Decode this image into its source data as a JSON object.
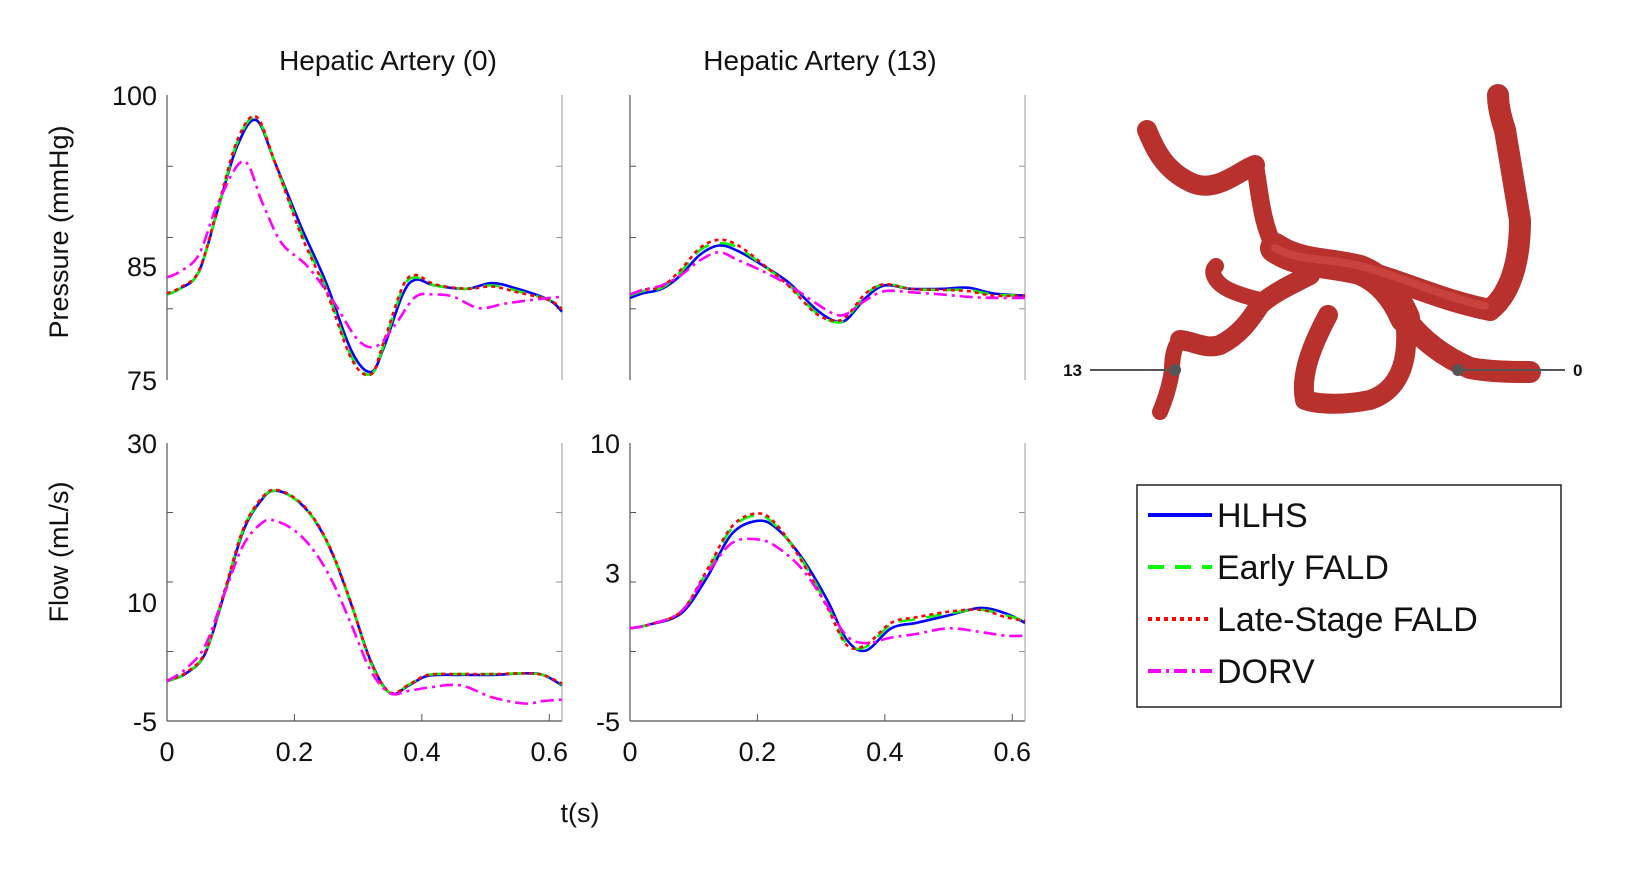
{
  "figure": {
    "shared_xlabel": "t(s)"
  },
  "chart_data": [
    {
      "type": "line",
      "title": "Hepatic Artery (0)",
      "xlabel": "",
      "ylabel": "Pressure (mmHg)",
      "xlim": [
        0,
        0.62
      ],
      "ylim": [
        75,
        100
      ],
      "x_ticks": [],
      "y_ticks": [
        "100",
        "85",
        "75"
      ],
      "y_tick_values": [
        100,
        85,
        75
      ],
      "series": [
        {
          "name": "HLHS",
          "x": [
            0,
            0.02,
            0.05,
            0.08,
            0.11,
            0.14,
            0.17,
            0.21,
            0.25,
            0.29,
            0.32,
            0.34,
            0.37,
            0.39,
            0.42,
            0.47,
            0.51,
            0.55,
            0.6,
            0.62
          ],
          "y": [
            82.5,
            83,
            84.5,
            90,
            95.5,
            97.8,
            94,
            88.5,
            83.5,
            77.5,
            75.7,
            77.8,
            82.5,
            83.8,
            83.3,
            83,
            83.5,
            83,
            82,
            81
          ]
        },
        {
          "name": "Early FALD",
          "x": [
            0,
            0.02,
            0.05,
            0.08,
            0.11,
            0.14,
            0.17,
            0.21,
            0.25,
            0.29,
            0.32,
            0.34,
            0.37,
            0.39,
            0.42,
            0.47,
            0.51,
            0.55,
            0.6,
            0.62
          ],
          "y": [
            82.5,
            83,
            84.5,
            90,
            95.8,
            98,
            94,
            88,
            83,
            77,
            75.5,
            78,
            83,
            84,
            83.3,
            83,
            83.3,
            82.8,
            82,
            81.3
          ]
        },
        {
          "name": "Late-Stage FALD",
          "x": [
            0,
            0.02,
            0.05,
            0.08,
            0.11,
            0.14,
            0.17,
            0.21,
            0.25,
            0.29,
            0.32,
            0.34,
            0.37,
            0.39,
            0.42,
            0.47,
            0.51,
            0.55,
            0.6,
            0.62
          ],
          "y": [
            82.6,
            83.1,
            84.6,
            90.2,
            96,
            98.1,
            94,
            87.8,
            82.8,
            76.8,
            75.5,
            78.3,
            83.2,
            84.2,
            83.4,
            83,
            83.2,
            82.7,
            82,
            81.2
          ]
        },
        {
          "name": "DORV",
          "x": [
            0,
            0.02,
            0.05,
            0.08,
            0.12,
            0.15,
            0.18,
            0.22,
            0.26,
            0.3,
            0.33,
            0.36,
            0.39,
            0.42,
            0.45,
            0.49,
            0.53,
            0.57,
            0.6,
            0.62
          ],
          "y": [
            84,
            84.5,
            86,
            90.5,
            94.2,
            90.5,
            87,
            85,
            82,
            78.5,
            78,
            80,
            82.3,
            82.5,
            82.3,
            81.3,
            81.7,
            82,
            82.2,
            82.3
          ]
        }
      ]
    },
    {
      "type": "line",
      "title": "Hepatic Artery (13)",
      "xlabel": "",
      "ylabel": "",
      "xlim": [
        0,
        0.62
      ],
      "ylim": [
        75,
        100
      ],
      "x_ticks": [],
      "y_ticks": [],
      "series": [
        {
          "name": "HLHS",
          "x": [
            0,
            0.02,
            0.05,
            0.08,
            0.11,
            0.14,
            0.17,
            0.21,
            0.25,
            0.29,
            0.32,
            0.34,
            0.37,
            0.4,
            0.44,
            0.49,
            0.53,
            0.57,
            0.62
          ],
          "y": [
            82.2,
            82.6,
            83,
            84.2,
            86,
            86.8,
            86.3,
            85,
            83.5,
            81.3,
            80.2,
            80.3,
            82.2,
            83.3,
            83,
            83,
            83.1,
            82.6,
            82.4
          ]
        },
        {
          "name": "Early FALD",
          "x": [
            0,
            0.02,
            0.05,
            0.08,
            0.11,
            0.14,
            0.17,
            0.21,
            0.25,
            0.29,
            0.32,
            0.34,
            0.37,
            0.4,
            0.44,
            0.49,
            0.53,
            0.57,
            0.62
          ],
          "y": [
            82.4,
            82.8,
            83.1,
            84.5,
            86.4,
            87,
            86.6,
            85,
            83.3,
            81,
            80.1,
            80.4,
            82.5,
            83.4,
            83,
            82.9,
            82.9,
            82.5,
            82.4
          ]
        },
        {
          "name": "Late-Stage FALD",
          "x": [
            0,
            0.02,
            0.05,
            0.08,
            0.11,
            0.14,
            0.17,
            0.21,
            0.25,
            0.29,
            0.32,
            0.34,
            0.37,
            0.4,
            0.44,
            0.49,
            0.53,
            0.57,
            0.62
          ],
          "y": [
            82.5,
            82.9,
            83.2,
            84.7,
            86.6,
            87.3,
            86.8,
            85.1,
            83.2,
            80.9,
            80.2,
            80.6,
            82.6,
            83.4,
            83,
            82.9,
            82.8,
            82.4,
            82.4
          ]
        },
        {
          "name": "DORV",
          "x": [
            0,
            0.02,
            0.05,
            0.08,
            0.11,
            0.14,
            0.17,
            0.21,
            0.25,
            0.29,
            0.32,
            0.34,
            0.37,
            0.4,
            0.44,
            0.49,
            0.53,
            0.57,
            0.62
          ],
          "y": [
            82.5,
            82.9,
            83.3,
            84.2,
            85.5,
            86.2,
            85.5,
            84.5,
            83.3,
            81.8,
            80.8,
            80.8,
            82,
            82.8,
            82.7,
            82.5,
            82.3,
            82.2,
            82.2
          ]
        }
      ]
    },
    {
      "type": "line",
      "title": "",
      "xlabel": "",
      "ylabel": "Flow (mL/s)",
      "xlim": [
        0,
        0.62
      ],
      "ylim": [
        -5,
        30
      ],
      "x_ticks": [
        "0",
        "0.2",
        "0.4",
        "0.6"
      ],
      "x_tick_values": [
        0,
        0.2,
        0.4,
        0.6
      ],
      "y_ticks": [
        "30",
        "10",
        "-5"
      ],
      "y_tick_values": [
        30,
        10,
        -5
      ],
      "series": [
        {
          "name": "HLHS",
          "x": [
            0,
            0.03,
            0.06,
            0.09,
            0.12,
            0.15,
            0.17,
            0.2,
            0.23,
            0.26,
            0.29,
            0.32,
            0.35,
            0.38,
            0.41,
            0.46,
            0.51,
            0.56,
            0.59,
            0.62
          ],
          "y": [
            0,
            1,
            3.5,
            11,
            19,
            23,
            24,
            23,
            20.5,
            16,
            9.5,
            2.5,
            -1.5,
            -0.5,
            0.7,
            0.8,
            0.8,
            1,
            0.8,
            -0.5
          ]
        },
        {
          "name": "Early FALD",
          "x": [
            0,
            0.03,
            0.06,
            0.09,
            0.12,
            0.15,
            0.17,
            0.2,
            0.23,
            0.26,
            0.29,
            0.32,
            0.35,
            0.38,
            0.41,
            0.46,
            0.51,
            0.56,
            0.59,
            0.62
          ],
          "y": [
            0,
            1,
            3.6,
            11.2,
            19.2,
            23.1,
            24,
            23,
            20.5,
            16,
            9.5,
            2.3,
            -1.5,
            -0.4,
            0.8,
            0.9,
            0.9,
            1,
            0.8,
            -0.4
          ]
        },
        {
          "name": "Late-Stage FALD",
          "x": [
            0,
            0.03,
            0.06,
            0.09,
            0.12,
            0.15,
            0.17,
            0.2,
            0.23,
            0.26,
            0.29,
            0.32,
            0.35,
            0.38,
            0.41,
            0.46,
            0.51,
            0.56,
            0.59,
            0.62
          ],
          "y": [
            0.1,
            1.1,
            3.7,
            11.3,
            19.3,
            23.2,
            24.1,
            23.1,
            20.6,
            16.1,
            9.6,
            2.4,
            -1.4,
            -0.4,
            0.8,
            0.9,
            0.9,
            1,
            0.8,
            -0.3
          ]
        },
        {
          "name": "DORV",
          "x": [
            0,
            0.03,
            0.06,
            0.09,
            0.12,
            0.15,
            0.17,
            0.2,
            0.23,
            0.26,
            0.29,
            0.32,
            0.35,
            0.38,
            0.41,
            0.46,
            0.51,
            0.56,
            0.59,
            0.62
          ],
          "y": [
            0,
            1.6,
            4.5,
            11,
            17.2,
            20,
            20.2,
            19,
            16.5,
            12.5,
            7,
            1.3,
            -1.5,
            -1.2,
            -0.8,
            -0.5,
            -2,
            -2.8,
            -2.5,
            -2.3
          ]
        }
      ]
    },
    {
      "type": "line",
      "title": "",
      "xlabel": "",
      "ylabel": "",
      "xlim": [
        0,
        0.62
      ],
      "ylim": [
        -5,
        10
      ],
      "x_ticks": [
        "0",
        "0.2",
        "0.4",
        "0.6"
      ],
      "x_tick_values": [
        0,
        0.2,
        0.4,
        0.6
      ],
      "y_ticks": [
        "10",
        "3",
        "-5"
      ],
      "y_tick_values": [
        10,
        3,
        -5
      ],
      "series": [
        {
          "name": "HLHS",
          "x": [
            0,
            0.03,
            0.08,
            0.12,
            0.16,
            0.2,
            0.23,
            0.27,
            0.31,
            0.34,
            0.37,
            0.41,
            0.45,
            0.5,
            0.55,
            0.59,
            0.62
          ],
          "y": [
            0,
            0.2,
            0.8,
            2.7,
            5.1,
            5.8,
            5.4,
            3.8,
            1.5,
            -0.6,
            -1.2,
            0,
            0.3,
            0.7,
            1.1,
            0.8,
            0.3
          ]
        },
        {
          "name": "Early FALD",
          "x": [
            0,
            0.03,
            0.08,
            0.12,
            0.16,
            0.2,
            0.23,
            0.27,
            0.31,
            0.34,
            0.37,
            0.41,
            0.45,
            0.5,
            0.55,
            0.59,
            0.62
          ],
          "y": [
            0,
            0.2,
            0.9,
            3,
            5.4,
            6.1,
            5.5,
            3.7,
            1.2,
            -0.8,
            -1,
            0.2,
            0.5,
            0.8,
            1,
            0.7,
            0.4
          ]
        },
        {
          "name": "Late-Stage FALD",
          "x": [
            0,
            0.03,
            0.08,
            0.12,
            0.16,
            0.2,
            0.23,
            0.27,
            0.31,
            0.34,
            0.37,
            0.41,
            0.45,
            0.5,
            0.55,
            0.59,
            0.62
          ],
          "y": [
            0,
            0.2,
            0.9,
            3.1,
            5.5,
            6.2,
            5.6,
            3.6,
            1.1,
            -0.9,
            -0.9,
            0.3,
            0.6,
            0.9,
            1,
            0.6,
            0.4
          ]
        },
        {
          "name": "DORV",
          "x": [
            0,
            0.03,
            0.08,
            0.12,
            0.16,
            0.2,
            0.23,
            0.27,
            0.31,
            0.34,
            0.37,
            0.41,
            0.45,
            0.5,
            0.55,
            0.59,
            0.62
          ],
          "y": [
            0,
            0.2,
            0.9,
            2.9,
            4.6,
            4.8,
            4.4,
            3.2,
            1.2,
            -0.4,
            -0.8,
            -0.5,
            -0.3,
            0,
            -0.2,
            -0.4,
            -0.4
          ]
        }
      ]
    }
  ],
  "legend": {
    "position": "right",
    "entries": [
      {
        "label": "HLHS",
        "color": "#0000ff",
        "dash": "solid"
      },
      {
        "label": "Early FALD",
        "color": "#00ff00",
        "dash": "dashed"
      },
      {
        "label": "Late-Stage FALD",
        "color": "#ff0000",
        "dash": "dotted"
      },
      {
        "label": "DORV",
        "color": "#ff00ff",
        "dash": "dashdot"
      }
    ]
  },
  "vessel_illustration": {
    "color": "#c83a35",
    "markers": [
      {
        "label": "13"
      },
      {
        "label": "0"
      }
    ]
  }
}
